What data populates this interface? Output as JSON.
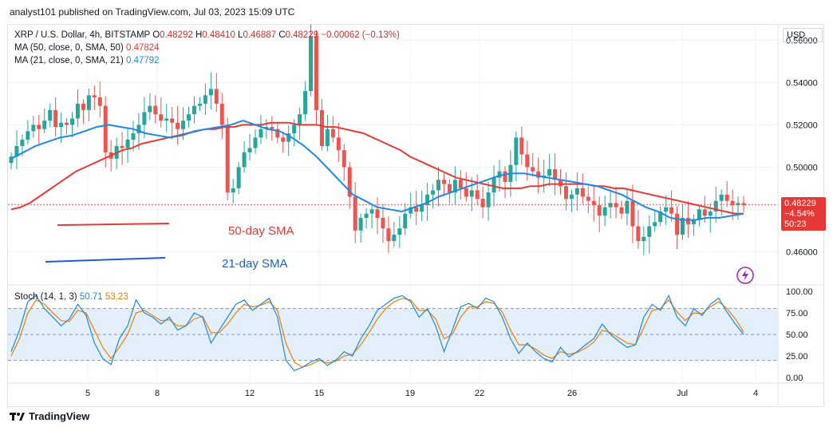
{
  "header": {
    "published": "analyst101 published on TradingView.com, Jul 03, 2023 15:09 UTC"
  },
  "legend": {
    "symbol": "XRP / U.S. Dollar, 4h, BITSTAMP",
    "o_label": "O",
    "o": "0.48292",
    "h_label": "H",
    "h": "0.48410",
    "l_label": "L",
    "l": "0.46887",
    "c_label": "C",
    "c": "0.48229",
    "change": "−0.00062 (−0.13%)",
    "ma50_label": "MA (50, close, 0, SMA, 50)",
    "ma50_value": "0.47824",
    "ma21_label": "MA (21, close, 0, SMA, 21)",
    "ma21_value": "0.47792"
  },
  "stoch_legend": {
    "label": "Stoch (14, 1, 3)",
    "k": "50.71",
    "d": "53.23"
  },
  "currency": "USD",
  "price_tag": {
    "price": "0.48229",
    "pct": "−4.54%",
    "countdown": "50:23"
  },
  "annotations": {
    "sma50": "50-day SMA",
    "sma21": "21-day SMA"
  },
  "footer": {
    "brand": "TradingView"
  },
  "colors": {
    "up": "#26a69a",
    "down": "#ef5350",
    "ma50": "#e53935",
    "ma21": "#1e88e5",
    "stoch_k": "#1e88e5",
    "stoch_d": "#f57c00",
    "band": "#e3effb"
  },
  "chart_data": {
    "type": "candlestick",
    "title": "XRP / U.S. Dollar, 4h, BITSTAMP",
    "y_ticks": [
      "0.56000",
      "0.54000",
      "0.52000",
      "0.50000",
      "0.48000",
      "0.46000"
    ],
    "y_tick_values": [
      0.56,
      0.54,
      0.52,
      0.5,
      0.48,
      0.46
    ],
    "ylim": [
      0.445,
      0.567
    ],
    "x_ticks": [
      "5",
      "8",
      "12",
      "15",
      "19",
      "22",
      "26",
      "Jul",
      "4"
    ],
    "last_price": 0.48229,
    "close_series": [
      0.505,
      0.51,
      0.513,
      0.517,
      0.52,
      0.518,
      0.522,
      0.527,
      0.519,
      0.521,
      0.52,
      0.523,
      0.53,
      0.527,
      0.534,
      0.533,
      0.529,
      0.507,
      0.504,
      0.51,
      0.509,
      0.513,
      0.516,
      0.52,
      0.526,
      0.529,
      0.525,
      0.522,
      0.523,
      0.521,
      0.518,
      0.522,
      0.525,
      0.529,
      0.53,
      0.534,
      0.537,
      0.53,
      0.52,
      0.488,
      0.49,
      0.5,
      0.507,
      0.509,
      0.514,
      0.518,
      0.519,
      0.518,
      0.514,
      0.512,
      0.516,
      0.52,
      0.525,
      0.536,
      0.562,
      0.527,
      0.51,
      0.518,
      0.514,
      0.508,
      0.5,
      0.486,
      0.47,
      0.476,
      0.478,
      0.48,
      0.476,
      0.471,
      0.465,
      0.468,
      0.471,
      0.478,
      0.481,
      0.479,
      0.482,
      0.487,
      0.489,
      0.494,
      0.492,
      0.488,
      0.494,
      0.49,
      0.486,
      0.489,
      0.485,
      0.481,
      0.488,
      0.495,
      0.498,
      0.493,
      0.501,
      0.514,
      0.506,
      0.5,
      0.498,
      0.495,
      0.496,
      0.499,
      0.494,
      0.491,
      0.485,
      0.487,
      0.49,
      0.486,
      0.484,
      0.482,
      0.477,
      0.481,
      0.483,
      0.481,
      0.478,
      0.484,
      0.472,
      0.465,
      0.467,
      0.472,
      0.474,
      0.479,
      0.481,
      0.478,
      0.468,
      0.476,
      0.473,
      0.475,
      0.48,
      0.477,
      0.479,
      0.484,
      0.487,
      0.484,
      0.482,
      0.483,
      0.482
    ],
    "ma50_series": [
      0.48,
      0.481,
      0.483,
      0.486,
      0.489,
      0.492,
      0.495,
      0.498,
      0.5,
      0.502,
      0.504,
      0.506,
      0.508,
      0.509,
      0.511,
      0.512,
      0.513,
      0.514,
      0.515,
      0.516,
      0.517,
      0.518,
      0.518,
      0.519,
      0.519,
      0.52,
      0.52,
      0.52,
      0.521,
      0.521,
      0.521,
      0.52,
      0.52,
      0.52,
      0.519,
      0.519,
      0.518,
      0.517,
      0.516,
      0.514,
      0.512,
      0.51,
      0.508,
      0.505,
      0.503,
      0.501,
      0.499,
      0.497,
      0.495,
      0.494,
      0.493,
      0.492,
      0.491,
      0.49,
      0.49,
      0.49,
      0.491,
      0.491,
      0.492,
      0.492,
      0.492,
      0.492,
      0.492,
      0.491,
      0.491,
      0.49,
      0.49,
      0.489,
      0.488,
      0.487,
      0.486,
      0.485,
      0.484,
      0.483,
      0.482,
      0.481,
      0.48,
      0.479,
      0.478,
      0.478
    ],
    "ma21_series": [
      0.504,
      0.507,
      0.51,
      0.512,
      0.514,
      0.515,
      0.517,
      0.519,
      0.52,
      0.519,
      0.518,
      0.516,
      0.515,
      0.514,
      0.515,
      0.517,
      0.518,
      0.519,
      0.52,
      0.522,
      0.52,
      0.518,
      0.517,
      0.514,
      0.51,
      0.505,
      0.499,
      0.493,
      0.487,
      0.484,
      0.481,
      0.48,
      0.479,
      0.481,
      0.483,
      0.486,
      0.488,
      0.49,
      0.492,
      0.494,
      0.496,
      0.497,
      0.497,
      0.496,
      0.495,
      0.494,
      0.493,
      0.492,
      0.491,
      0.489,
      0.487,
      0.484,
      0.481,
      0.479,
      0.476,
      0.475,
      0.475,
      0.476,
      0.476,
      0.477,
      0.478
    ],
    "stoch_ticks": [
      "100.00",
      "75.00",
      "50.00",
      "25.00",
      "0.00"
    ],
    "stoch_tick_values": [
      100,
      75,
      50,
      25,
      0
    ],
    "stoch_band": [
      20,
      80
    ],
    "stoch_k": [
      30,
      55,
      88,
      95,
      80,
      70,
      60,
      68,
      85,
      72,
      40,
      22,
      15,
      45,
      60,
      90,
      75,
      70,
      62,
      70,
      55,
      60,
      75,
      70,
      40,
      55,
      70,
      85,
      90,
      78,
      85,
      92,
      70,
      20,
      8,
      12,
      18,
      22,
      14,
      20,
      30,
      25,
      45,
      60,
      78,
      85,
      92,
      95,
      88,
      70,
      80,
      60,
      30,
      55,
      82,
      86,
      80,
      92,
      88,
      70,
      45,
      28,
      40,
      30,
      22,
      18,
      35,
      24,
      30,
      38,
      45,
      62,
      50,
      42,
      35,
      38,
      70,
      85,
      78,
      95,
      70,
      60,
      80,
      72,
      85,
      92,
      76,
      62,
      50
    ],
    "stoch_d": [
      25,
      45,
      75,
      90,
      85,
      75,
      66,
      65,
      78,
      75,
      55,
      35,
      22,
      35,
      50,
      75,
      78,
      72,
      66,
      67,
      60,
      60,
      68,
      71,
      52,
      52,
      62,
      75,
      85,
      82,
      84,
      88,
      78,
      40,
      18,
      12,
      15,
      20,
      17,
      19,
      25,
      27,
      38,
      52,
      68,
      80,
      88,
      92,
      90,
      78,
      78,
      68,
      45,
      50,
      70,
      82,
      82,
      88,
      86,
      76,
      55,
      38,
      38,
      33,
      26,
      22,
      30,
      27,
      29,
      34,
      41,
      55,
      52,
      46,
      40,
      38,
      58,
      78,
      80,
      90,
      76,
      66,
      75,
      74,
      82,
      88,
      80,
      68,
      53
    ]
  }
}
